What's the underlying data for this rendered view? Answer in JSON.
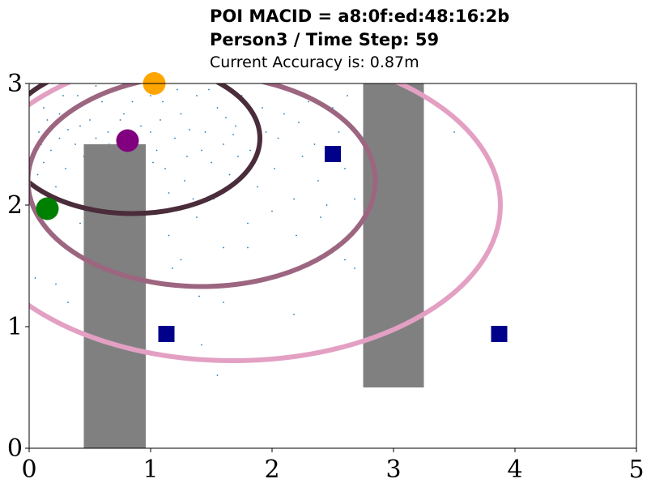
{
  "header": {
    "title_line1": "POI MACID = a8:0f:ed:48:16:2b",
    "title_line2": "Person3 / Time Step: 59",
    "title_line3": "Current Accuracy is: 0.87m"
  },
  "chart_data": {
    "type": "scatter",
    "title": "POI MACID = a8:0f:ed:48:16:2b",
    "subtitle": "Person3 / Time Step: 59 | Current Accuracy is: 0.87m",
    "xlabel": "",
    "ylabel": "",
    "xlim": [
      0,
      5
    ],
    "ylim": [
      0,
      3
    ],
    "grid": false,
    "x_ticks": [
      "0",
      "1",
      "2",
      "3",
      "4",
      "5"
    ],
    "y_ticks": [
      "0",
      "1",
      "2",
      "3"
    ],
    "obstacles": [
      {
        "x0": 0.45,
        "x1": 0.96,
        "y0": 0,
        "y1": 2.5,
        "color": "#808080"
      },
      {
        "x0": 2.75,
        "x1": 3.25,
        "y0": 0.5,
        "y1": 3.0,
        "color": "#808080"
      }
    ],
    "access_points": [
      {
        "x": 2.5,
        "y": 2.42,
        "color": "#00008b"
      },
      {
        "x": 1.13,
        "y": 0.94,
        "color": "#00008b"
      },
      {
        "x": 3.87,
        "y": 0.94,
        "color": "#00008b"
      }
    ],
    "markers": [
      {
        "name": "green",
        "x": 0.15,
        "y": 1.97,
        "color": "#008000"
      },
      {
        "name": "purple",
        "x": 0.81,
        "y": 2.53,
        "color": "#800080"
      },
      {
        "name": "orange",
        "x": 1.03,
        "y": 3.0,
        "color": "#ffa500"
      }
    ],
    "ellipses": [
      {
        "cx": 0.85,
        "cy": 2.55,
        "rx": 1.05,
        "ry": 0.62,
        "color": "#4a2c3a"
      },
      {
        "cx": 1.42,
        "cy": 2.2,
        "rx": 1.43,
        "ry": 0.87,
        "color": "#9c6680"
      },
      {
        "cx": 1.68,
        "cy": 2.0,
        "rx": 2.2,
        "ry": 1.28,
        "color": "#e3a0c3"
      }
    ],
    "particles": [
      [
        0.05,
        2.95
      ],
      [
        0.12,
        2.8
      ],
      [
        0.08,
        2.6
      ],
      [
        0.25,
        2.75
      ],
      [
        0.32,
        2.62
      ],
      [
        0.18,
        2.45
      ],
      [
        0.4,
        2.9
      ],
      [
        0.5,
        2.7
      ],
      [
        0.45,
        2.4
      ],
      [
        0.6,
        2.85
      ],
      [
        0.65,
        2.6
      ],
      [
        0.72,
        2.95
      ],
      [
        0.3,
        2.3
      ],
      [
        0.22,
        2.15
      ],
      [
        0.1,
        2.5
      ],
      [
        0.28,
        2.9
      ],
      [
        0.55,
        2.55
      ],
      [
        0.38,
        2.5
      ],
      [
        0.15,
        2.7
      ],
      [
        0.42,
        2.65
      ],
      [
        0.58,
        2.35
      ],
      [
        0.68,
        2.4
      ],
      [
        0.75,
        2.7
      ],
      [
        0.85,
        2.85
      ],
      [
        0.9,
        2.4
      ],
      [
        1.0,
        2.6
      ],
      [
        1.05,
        2.45
      ],
      [
        1.12,
        2.3
      ],
      [
        1.2,
        2.55
      ],
      [
        1.25,
        2.75
      ],
      [
        1.3,
        2.4
      ],
      [
        1.38,
        2.9
      ],
      [
        1.45,
        2.6
      ],
      [
        1.5,
        2.35
      ],
      [
        1.55,
        2.8
      ],
      [
        1.6,
        2.5
      ],
      [
        1.65,
        2.25
      ],
      [
        1.7,
        2.65
      ],
      [
        1.75,
        2.9
      ],
      [
        1.82,
        2.45
      ],
      [
        1.88,
        2.15
      ],
      [
        1.95,
        2.6
      ],
      [
        2.02,
        2.3
      ],
      [
        2.1,
        2.75
      ],
      [
        2.18,
        2.05
      ],
      [
        2.25,
        2.4
      ],
      [
        2.3,
        2.85
      ],
      [
        2.38,
        2.2
      ],
      [
        2.45,
        2.0
      ],
      [
        2.55,
        2.6
      ],
      [
        2.6,
        2.3
      ],
      [
        2.68,
        2.05
      ],
      [
        0.95,
        2.2
      ],
      [
        1.15,
        2.1
      ],
      [
        1.35,
        2.05
      ],
      [
        1.58,
        2.1
      ],
      [
        1.0,
        2.9
      ],
      [
        1.1,
        2.85
      ],
      [
        0.8,
        2.25
      ],
      [
        0.62,
        2.15
      ],
      [
        0.48,
        2.05
      ],
      [
        0.35,
        2.0
      ],
      [
        0.2,
        1.9
      ],
      [
        0.42,
        1.85
      ],
      [
        1.15,
        1.75
      ],
      [
        1.25,
        1.55
      ],
      [
        1.38,
        1.9
      ],
      [
        1.6,
        1.65
      ],
      [
        1.8,
        1.85
      ],
      [
        2.0,
        1.95
      ],
      [
        2.2,
        1.75
      ],
      [
        2.4,
        1.9
      ],
      [
        2.6,
        1.55
      ],
      [
        0.05,
        1.4
      ],
      [
        0.22,
        1.35
      ],
      [
        0.32,
        1.2
      ],
      [
        1.18,
        1.48
      ],
      [
        1.4,
        1.25
      ],
      [
        1.6,
        1.2
      ],
      [
        1.8,
        1.65
      ],
      [
        2.68,
        1.48
      ],
      [
        3.5,
        2.6
      ],
      [
        1.42,
        0.85
      ],
      [
        1.55,
        0.6
      ],
      [
        2.18,
        1.1
      ],
      [
        0.78,
        2.75
      ],
      [
        0.92,
        2.65
      ],
      [
        1.08,
        2.7
      ],
      [
        1.22,
        2.95
      ],
      [
        1.32,
        2.62
      ],
      [
        1.48,
        2.95
      ],
      [
        1.62,
        2.72
      ],
      [
        1.72,
        2.4
      ],
      [
        0.55,
        2.98
      ],
      [
        0.25,
        2.55
      ],
      [
        0.12,
        2.35
      ],
      [
        0.36,
        2.78
      ],
      [
        0.66,
        2.5
      ],
      [
        0.86,
        2.05
      ],
      [
        1.02,
        2.35
      ],
      [
        1.28,
        2.2
      ],
      [
        1.42,
        2.45
      ],
      [
        1.52,
        2.05
      ],
      [
        1.68,
        2.58
      ],
      [
        1.92,
        2.8
      ],
      [
        2.05,
        2.55
      ],
      [
        2.22,
        2.68
      ],
      [
        2.35,
        2.5
      ],
      [
        2.5,
        2.8
      ],
      [
        2.62,
        2.9
      ],
      [
        0.18,
        2.95
      ],
      [
        0.07,
        2.25
      ]
    ]
  }
}
